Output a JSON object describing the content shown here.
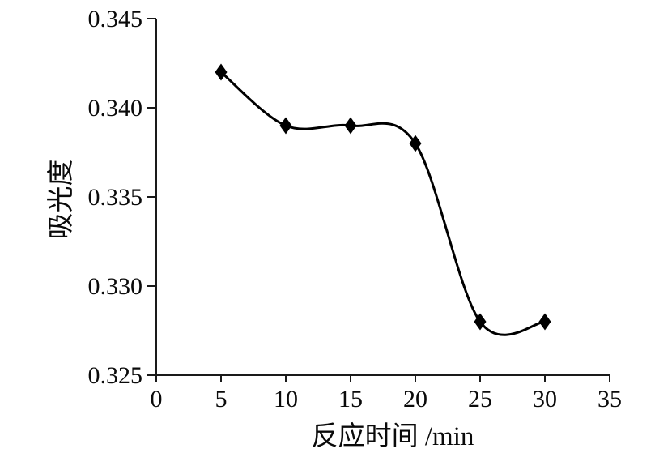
{
  "page": {
    "background": "#ffffff"
  },
  "chart_data": {
    "type": "line",
    "title": "",
    "xlabel": "反应时间 /min",
    "ylabel": "吸光度",
    "x": [
      5,
      10,
      15,
      20,
      25,
      30
    ],
    "y": [
      0.342,
      0.339,
      0.339,
      0.338,
      0.328,
      0.328
    ],
    "xlim": [
      0,
      35
    ],
    "ylim": [
      0.325,
      0.345
    ],
    "xticks": [
      0,
      5,
      10,
      15,
      20,
      25,
      30,
      35
    ],
    "yticks": [
      0.325,
      0.33,
      0.335,
      0.34,
      0.345
    ],
    "xtick_labels": [
      "0",
      "5",
      "10",
      "15",
      "20",
      "25",
      "30",
      "35"
    ],
    "ytick_labels": [
      "0.325",
      "0.330",
      "0.335",
      "0.340",
      "0.345"
    ],
    "grid": false,
    "legend": "none",
    "smooth": true,
    "marker": "diamond",
    "line_color": "#000000",
    "marker_color": "#000000",
    "axis_color": "#1a1a1a",
    "tick_direction": "out"
  }
}
